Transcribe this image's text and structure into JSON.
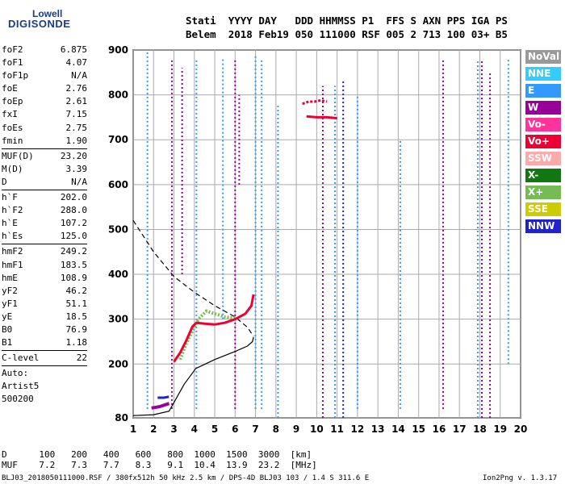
{
  "logo": {
    "line1": "Lowell",
    "line2": "DIGISONDE"
  },
  "header": {
    "labels": [
      "Stati",
      "YYYY",
      "DAY",
      "DDD",
      "HHMMSS",
      "P1",
      "FFS",
      "S",
      "AXN",
      "PPS",
      "IGA",
      "PS"
    ],
    "values": [
      "Belem",
      "2018",
      "Feb19",
      "050",
      "111000",
      "RSF",
      "005",
      "2",
      "713",
      "100",
      "03+",
      "B5"
    ]
  },
  "params": {
    "group1": [
      {
        "name": "foF2",
        "value": "6.875"
      },
      {
        "name": "foF1",
        "value": "4.07"
      },
      {
        "name": "foF1p",
        "value": "N/A"
      },
      {
        "name": "foE",
        "value": "2.76"
      },
      {
        "name": "foEp",
        "value": "2.61"
      },
      {
        "name": "fxI",
        "value": "7.15"
      },
      {
        "name": "foEs",
        "value": "2.75"
      },
      {
        "name": "fmin",
        "value": "1.90"
      }
    ],
    "group2": [
      {
        "name": "MUF(D)",
        "value": "23.20"
      },
      {
        "name": "M(D)",
        "value": "3.39"
      },
      {
        "name": "D",
        "value": "N/A"
      }
    ],
    "group3": [
      {
        "name": "h`F",
        "value": "202.0"
      },
      {
        "name": "h`F2",
        "value": "288.0"
      },
      {
        "name": "h`E",
        "value": "107.2"
      },
      {
        "name": "h`Es",
        "value": "125.0"
      }
    ],
    "group4": [
      {
        "name": "hmF2",
        "value": "249.2"
      },
      {
        "name": "hmF1",
        "value": "183.5"
      },
      {
        "name": "hmE",
        "value": "108.9"
      },
      {
        "name": "yF2",
        "value": "46.2"
      },
      {
        "name": "yF1",
        "value": "51.1"
      },
      {
        "name": "yE",
        "value": "18.5"
      },
      {
        "name": "B0",
        "value": "76.9"
      },
      {
        "name": "B1",
        "value": "1.18"
      }
    ],
    "group5": [
      {
        "name": "C-level",
        "value": "22"
      }
    ],
    "group6": [
      {
        "text": "Auto:"
      },
      {
        "text": "Artist5"
      },
      {
        "text": "500200"
      }
    ]
  },
  "legend": [
    {
      "label": "NoVal",
      "color": "#999999"
    },
    {
      "label": "NNE",
      "color": "#33ccff"
    },
    {
      "label": "E",
      "color": "#3399ff"
    },
    {
      "label": "W",
      "color": "#990099"
    },
    {
      "label": "Vo-",
      "color": "#ff3399"
    },
    {
      "label": "Vo+",
      "color": "#ee0033"
    },
    {
      "label": "SSW",
      "color": "#ffaaaa"
    },
    {
      "label": "X-",
      "color": "#117711"
    },
    {
      "label": "X+",
      "color": "#77bb55"
    },
    {
      "label": "SSE",
      "color": "#cccc00"
    },
    {
      "label": "NNW",
      "color": "#2222cc"
    }
  ],
  "footer": {
    "d_label": "D",
    "d_values": [
      "100",
      "200",
      "400",
      "600",
      "800",
      "1000",
      "1500",
      "3000"
    ],
    "d_unit": "[km]",
    "muf_label": "MUF",
    "muf_values": [
      "7.2",
      "7.3",
      "7.7",
      "8.3",
      "9.1",
      "10.4",
      "13.9",
      "23.2"
    ],
    "muf_unit": "[MHz]",
    "file_info": "BLJ03_2018050111000.RSF / 380fx512h 50 kHz 2.5 km / DPS-4D BLJ03 103 / 1.4 S 311.6 E",
    "version": "Ion2Png v. 1.3.17"
  },
  "chart_data": {
    "type": "scatter",
    "xlim": [
      1,
      20
    ],
    "ylim": [
      80,
      900
    ],
    "x_ticks": [
      1,
      2,
      3,
      4,
      5,
      6,
      7,
      8,
      9,
      10,
      11,
      12,
      13,
      14,
      15,
      16,
      17,
      18,
      19,
      20
    ],
    "y_ticks": [
      80,
      200,
      300,
      400,
      500,
      600,
      700,
      800,
      900
    ],
    "x_unit": "MHz",
    "y_unit": "km",
    "grid": true,
    "profile_solid": [
      [
        1,
        85
      ],
      [
        2,
        87
      ],
      [
        2.76,
        95
      ],
      [
        3.5,
        155
      ],
      [
        4.07,
        190
      ],
      [
        5,
        210
      ],
      [
        6,
        228
      ],
      [
        6.6,
        240
      ],
      [
        6.85,
        250
      ],
      [
        6.9,
        260
      ]
    ],
    "profile_dashed": [
      [
        1,
        520
      ],
      [
        2,
        450
      ],
      [
        3,
        395
      ],
      [
        4,
        360
      ],
      [
        5,
        330
      ],
      [
        6,
        305
      ],
      [
        6.6,
        282
      ],
      [
        6.9,
        262
      ]
    ],
    "trace_f_o": [
      [
        3.0,
        205
      ],
      [
        3.3,
        225
      ],
      [
        3.6,
        252
      ],
      [
        3.9,
        283
      ],
      [
        4.1,
        292
      ],
      [
        4.5,
        290
      ],
      [
        5.0,
        288
      ],
      [
        5.5,
        292
      ],
      [
        6.0,
        300
      ],
      [
        6.5,
        312
      ],
      [
        6.8,
        330
      ],
      [
        6.9,
        355
      ]
    ],
    "trace_f_x": [
      [
        3.3,
        210
      ],
      [
        3.6,
        245
      ],
      [
        4.2,
        300
      ],
      [
        4.6,
        318
      ],
      [
        5.0,
        312
      ],
      [
        5.5,
        305
      ],
      [
        6.0,
        302
      ]
    ],
    "trace_e": [
      [
        1.9,
        102
      ],
      [
        2.3,
        105
      ],
      [
        2.76,
        112
      ]
    ],
    "trace_es": [
      [
        2.2,
        125
      ],
      [
        2.5,
        125
      ],
      [
        2.75,
        127
      ]
    ],
    "trace_2f": [
      [
        9.3,
        780
      ],
      [
        9.6,
        785
      ],
      [
        9.9,
        785
      ],
      [
        10.2,
        788
      ],
      [
        10.5,
        785
      ]
    ],
    "trace_2f_b": [
      [
        9.5,
        752
      ],
      [
        10.0,
        750
      ],
      [
        10.5,
        750
      ],
      [
        11.0,
        748
      ]
    ],
    "vertical_lines": [
      {
        "x": 1.7,
        "y0": 100,
        "y1": 900,
        "color": "#3399ff"
      },
      {
        "x": 2.9,
        "y0": 100,
        "y1": 880,
        "color": "#990099"
      },
      {
        "x": 3.4,
        "y0": 400,
        "y1": 860,
        "color": "#990099"
      },
      {
        "x": 4.1,
        "y0": 100,
        "y1": 880,
        "color": "#3399ff"
      },
      {
        "x": 5.4,
        "y0": 300,
        "y1": 880,
        "color": "#3399ff"
      },
      {
        "x": 6.0,
        "y0": 100,
        "y1": 880,
        "color": "#990099"
      },
      {
        "x": 6.2,
        "y0": 600,
        "y1": 800,
        "color": "#990099"
      },
      {
        "x": 7.0,
        "y0": 100,
        "y1": 890,
        "color": "#3399ff"
      },
      {
        "x": 7.3,
        "y0": 100,
        "y1": 880,
        "color": "#3399ff"
      },
      {
        "x": 8.1,
        "y0": 80,
        "y1": 780,
        "color": "#3399ff"
      },
      {
        "x": 10.3,
        "y0": 80,
        "y1": 820,
        "color": "#990099"
      },
      {
        "x": 10.9,
        "y0": 80,
        "y1": 820,
        "color": "#3399ff"
      },
      {
        "x": 11.3,
        "y0": 80,
        "y1": 830,
        "color": "#2222cc"
      },
      {
        "x": 12.0,
        "y0": 100,
        "y1": 800,
        "color": "#3399ff"
      },
      {
        "x": 14.1,
        "y0": 100,
        "y1": 700,
        "color": "#3399ff"
      },
      {
        "x": 16.2,
        "y0": 100,
        "y1": 880,
        "color": "#990099"
      },
      {
        "x": 17.9,
        "y0": 80,
        "y1": 880,
        "color": "#3399ff"
      },
      {
        "x": 18.1,
        "y0": 80,
        "y1": 880,
        "color": "#990099"
      },
      {
        "x": 18.5,
        "y0": 80,
        "y1": 850,
        "color": "#990099"
      },
      {
        "x": 19.4,
        "y0": 200,
        "y1": 880,
        "color": "#3399ff"
      }
    ]
  }
}
